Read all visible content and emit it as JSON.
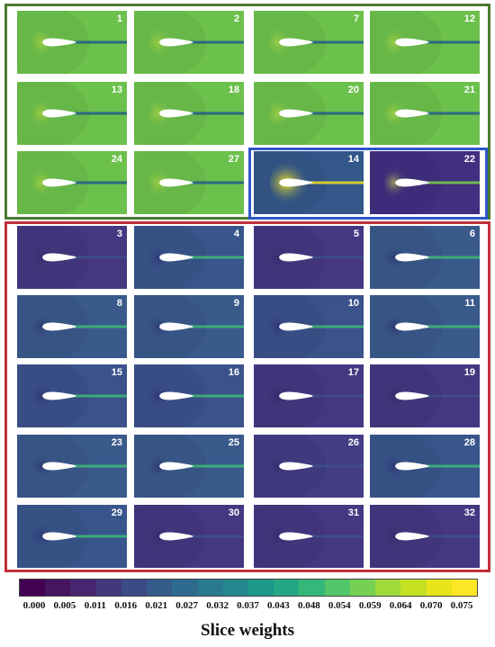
{
  "groups": [
    {
      "name": "green-group",
      "color": "#4a7a2e"
    },
    {
      "name": "blue-group",
      "color": "#2e56c8"
    },
    {
      "name": "red-group",
      "color": "#c0303a"
    }
  ],
  "tiles": [
    {
      "label": "1",
      "field": "#6cc04c",
      "wake": "#1f5a8a",
      "lead": "#c8e040",
      "scheme": "green"
    },
    {
      "label": "2",
      "field": "#6cc04c",
      "wake": "#1f5a8a",
      "lead": "#c8e040",
      "scheme": "green"
    },
    {
      "label": "7",
      "field": "#6cc04c",
      "wake": "#1f5a8a",
      "lead": "#c8e040",
      "scheme": "green"
    },
    {
      "label": "12",
      "field": "#6cc04c",
      "wake": "#1f5a8a",
      "lead": "#c8e040",
      "scheme": "green"
    },
    {
      "label": "13",
      "field": "#6cc04c",
      "wake": "#1f5a8a",
      "lead": "#c8e040",
      "scheme": "green"
    },
    {
      "label": "18",
      "field": "#6cc04c",
      "wake": "#1f5a8a",
      "lead": "#c8e040",
      "scheme": "green"
    },
    {
      "label": "20",
      "field": "#6cc04c",
      "wake": "#1f5a8a",
      "lead": "#c8e040",
      "scheme": "green"
    },
    {
      "label": "21",
      "field": "#6cc04c",
      "wake": "#1f5a8a",
      "lead": "#c8e040",
      "scheme": "green"
    },
    {
      "label": "24",
      "field": "#6cc04c",
      "wake": "#1f5a8a",
      "lead": "#c8e040",
      "scheme": "green"
    },
    {
      "label": "27",
      "field": "#6cc04c",
      "wake": "#1f5a8a",
      "lead": "#c8e040",
      "scheme": "green"
    },
    {
      "label": "14",
      "field": "#34578a",
      "wake": "#f0e020",
      "lead": "#f5e61e",
      "scheme": "hot"
    },
    {
      "label": "22",
      "field": "#412f80",
      "wake": "#7ad048",
      "lead": "#e8f040",
      "scheme": "hot2"
    },
    {
      "label": "3",
      "field": "#453781",
      "wake": "#3a5a8c",
      "lead": "#2c2860",
      "scheme": "dark"
    },
    {
      "label": "4",
      "field": "#39568c",
      "wake": "#3cbb75",
      "lead": "#2a2868",
      "scheme": "mid"
    },
    {
      "label": "5",
      "field": "#453781",
      "wake": "#3a5a8c",
      "lead": "#2c2860",
      "scheme": "dark"
    },
    {
      "label": "6",
      "field": "#3a5a8c",
      "wake": "#3cbb75",
      "lead": "#2a2868",
      "scheme": "mid"
    },
    {
      "label": "8",
      "field": "#3a5a8c",
      "wake": "#3cbb75",
      "lead": "#2a2868",
      "scheme": "mid"
    },
    {
      "label": "9",
      "field": "#3a5a8c",
      "wake": "#3cbb75",
      "lead": "#2a2868",
      "scheme": "mid"
    },
    {
      "label": "10",
      "field": "#3b528b",
      "wake": "#3cbb75",
      "lead": "#2a2868",
      "scheme": "mid"
    },
    {
      "label": "11",
      "field": "#3a5a8c",
      "wake": "#3cbb75",
      "lead": "#2a2868",
      "scheme": "mid"
    },
    {
      "label": "15",
      "field": "#3b528b",
      "wake": "#3cbb75",
      "lead": "#2a2868",
      "scheme": "mid"
    },
    {
      "label": "16",
      "field": "#3b528b",
      "wake": "#3cbb75",
      "lead": "#2a2868",
      "scheme": "mid"
    },
    {
      "label": "17",
      "field": "#453781",
      "wake": "#3a5a8c",
      "lead": "#2c2860",
      "scheme": "dark"
    },
    {
      "label": "19",
      "field": "#453781",
      "wake": "#3a5a8c",
      "lead": "#2c2860",
      "scheme": "dark"
    },
    {
      "label": "23",
      "field": "#3a5a8c",
      "wake": "#3cbb75",
      "lead": "#2a2868",
      "scheme": "mid"
    },
    {
      "label": "25",
      "field": "#3a5a8c",
      "wake": "#3cbb75",
      "lead": "#2a2868",
      "scheme": "mid"
    },
    {
      "label": "26",
      "field": "#433e85",
      "wake": "#3a5a8c",
      "lead": "#2c2860",
      "scheme": "dark"
    },
    {
      "label": "28",
      "field": "#39568c",
      "wake": "#3cbb75",
      "lead": "#2a2868",
      "scheme": "mid"
    },
    {
      "label": "29",
      "field": "#39568c",
      "wake": "#3cbb75",
      "lead": "#2a2868",
      "scheme": "mid"
    },
    {
      "label": "30",
      "field": "#453781",
      "wake": "#3a5a8c",
      "lead": "#2c2860",
      "scheme": "dark"
    },
    {
      "label": "31",
      "field": "#453781",
      "wake": "#3a5a8c",
      "lead": "#2c2860",
      "scheme": "dark"
    },
    {
      "label": "32",
      "field": "#453781",
      "wake": "#3a5a8c",
      "lead": "#2c2860",
      "scheme": "dark"
    }
  ],
  "colorbar": {
    "colors": [
      "#440154",
      "#46155f",
      "#46276f",
      "#41397b",
      "#3b4b85",
      "#355b8b",
      "#2f6b8e",
      "#297a8e",
      "#23898e",
      "#1e978b",
      "#22a884",
      "#35b779",
      "#52c569",
      "#75d054",
      "#9fda3a",
      "#c5e021",
      "#e8e41a",
      "#fde725"
    ],
    "ticks": [
      "0.000",
      "0.005",
      "0.011",
      "0.016",
      "0.021",
      "0.027",
      "0.032",
      "0.037",
      "0.043",
      "0.048",
      "0.054",
      "0.059",
      "0.064",
      "0.070",
      "0.075"
    ],
    "title": "Slice weights"
  }
}
